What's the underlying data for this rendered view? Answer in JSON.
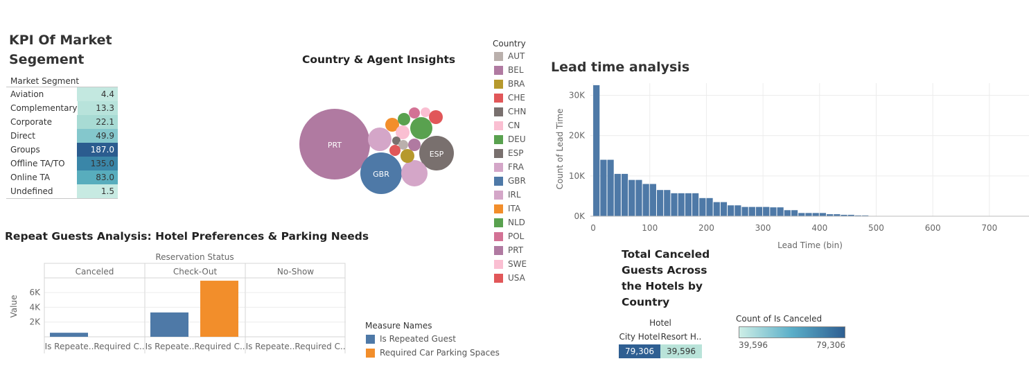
{
  "kpi": {
    "title": "KPI Of Market Segement",
    "header": "Market Segment",
    "rows": [
      {
        "name": "Aviation",
        "value": "4.4",
        "color": "#c3e8e0"
      },
      {
        "name": "Complementary",
        "value": "13.3",
        "color": "#b8e3db"
      },
      {
        "name": "Corporate",
        "value": "22.1",
        "color": "#a8dbd4"
      },
      {
        "name": "Direct",
        "value": "49.9",
        "color": "#84c7cc"
      },
      {
        "name": "Groups",
        "value": "187.0",
        "color": "#2b5c8f"
      },
      {
        "name": "Offline TA/TO",
        "value": "135.0",
        "color": "#3a86a8"
      },
      {
        "name": "Online TA",
        "value": "83.0",
        "color": "#58adbd"
      },
      {
        "name": "Undefined",
        "value": "1.5",
        "color": "#c7eae2"
      }
    ]
  },
  "country": {
    "title": "Country & Agent Insights",
    "legend_title": "Country",
    "legend": [
      {
        "label": "AUT",
        "color": "#bab0ac"
      },
      {
        "label": "BEL",
        "color": "#b07aa1"
      },
      {
        "label": "BRA",
        "color": "#b6992d"
      },
      {
        "label": "CHE",
        "color": "#e15759"
      },
      {
        "label": "CHN",
        "color": "#79706e"
      },
      {
        "label": "CN",
        "color": "#fabfd2"
      },
      {
        "label": "DEU",
        "color": "#59a14f"
      },
      {
        "label": "ESP",
        "color": "#79706e"
      },
      {
        "label": "FRA",
        "color": "#d4a6c8"
      },
      {
        "label": "GBR",
        "color": "#4e79a7"
      },
      {
        "label": "IRL",
        "color": "#d4a6c8"
      },
      {
        "label": "ITA",
        "color": "#f28e2b"
      },
      {
        "label": "NLD",
        "color": "#59a14f"
      },
      {
        "label": "POL",
        "color": "#d37295"
      },
      {
        "label": "PRT",
        "color": "#b07aa1"
      },
      {
        "label": "SWE",
        "color": "#fabfd2"
      },
      {
        "label": "USA",
        "color": "#e15759"
      }
    ],
    "bubble_labels": {
      "PRT": "PRT",
      "GBR": "GBR",
      "ESP": "ESP"
    }
  },
  "chart_data": [
    {
      "type": "histogram",
      "title": "Lead time analysis",
      "xlabel": "Lead Time (bin)",
      "ylabel": "Count of Lead Time",
      "bin_width": 12.5,
      "x_ticks": [
        "0",
        "100",
        "200",
        "300",
        "400",
        "500",
        "600",
        "700"
      ],
      "y_ticks": [
        "0K",
        "10K",
        "20K",
        "30K"
      ],
      "ylim": [
        0,
        33000
      ],
      "xlim": [
        -5,
        770
      ],
      "bins_start": [
        0,
        12.5,
        25,
        37.5,
        50,
        62.5,
        75,
        87.5,
        100,
        112.5,
        125,
        137.5,
        150,
        162.5,
        175,
        187.5,
        200,
        212.5,
        225,
        237.5,
        250,
        262.5,
        275,
        287.5,
        300,
        312.5,
        325,
        337.5,
        350,
        362.5,
        375,
        387.5,
        400,
        412.5,
        425,
        437.5,
        450,
        462.5,
        475,
        487.5,
        500
      ],
      "values": [
        32500,
        14000,
        14000,
        10500,
        10500,
        9000,
        9000,
        8000,
        8000,
        6500,
        6500,
        5700,
        5700,
        5700,
        5700,
        4500,
        4500,
        3500,
        3500,
        2700,
        2700,
        2300,
        2300,
        2300,
        2300,
        2200,
        2200,
        1500,
        1500,
        800,
        800,
        800,
        800,
        500,
        500,
        350,
        350,
        200,
        200,
        80,
        80
      ]
    },
    {
      "type": "bar",
      "title": "Repeat Guests Analysis: Hotel Preferences & Parking Needs",
      "column_header": "Reservation Status",
      "ylabel": "Value",
      "y_ticks": [
        "2K",
        "4K",
        "6K"
      ],
      "ylim": [
        0,
        7700
      ],
      "panels": [
        "Canceled",
        "Check-Out",
        "No-Show"
      ],
      "categories": [
        "Is Repeate..",
        "Required C.."
      ],
      "series_values": {
        "Canceled": [
          550,
          0
        ],
        "Check-Out": [
          3300,
          7600
        ],
        "No-Show": [
          0,
          0
        ]
      },
      "legend_title": "Measure Names",
      "legend": [
        {
          "label": "Is Repeated Guest",
          "color": "#4e79a7"
        },
        {
          "label": "Required Car Parking Spaces",
          "color": "#f28e2b"
        }
      ]
    },
    {
      "type": "table",
      "title": "Total Canceled Guests Across the Hotels by Country",
      "column_header": "Hotel",
      "columns": [
        "City Hotel",
        "Resort H.."
      ],
      "values": [
        "79,306",
        "39,596"
      ],
      "colors": [
        "#2f5f92",
        "#b9e3d9"
      ],
      "legend_title": "Count of Is Canceled",
      "legend_min": "39,596",
      "legend_max": "79,306"
    }
  ]
}
